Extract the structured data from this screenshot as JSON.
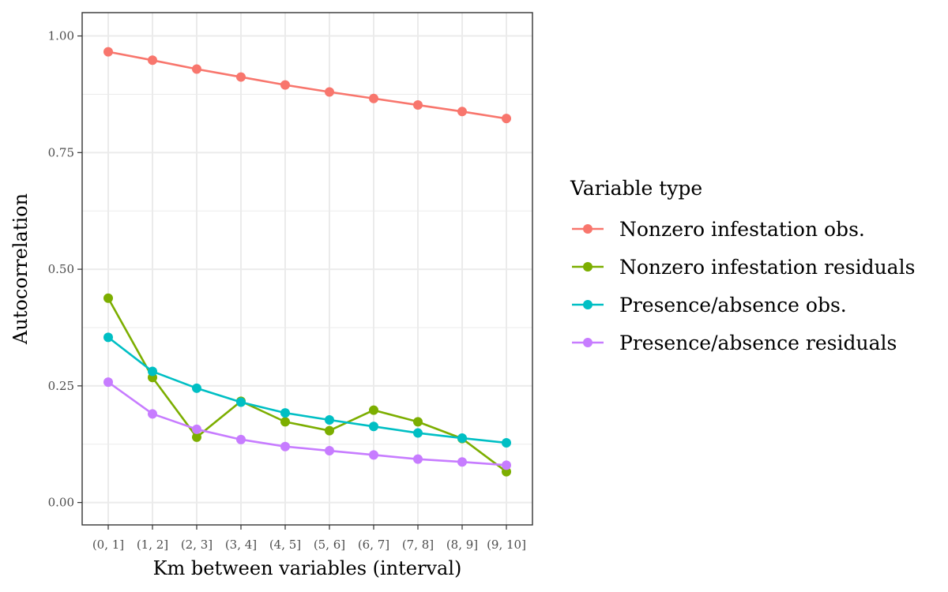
{
  "chart_data": {
    "type": "line",
    "title": "",
    "xlabel": "Km between variables (interval)",
    "ylabel": "Autocorrelation",
    "categories": [
      "(0, 1]",
      "(1, 2]",
      "(2, 3]",
      "(3, 4]",
      "(4, 5]",
      "(5, 6]",
      "(6, 7]",
      "(7, 8]",
      "(8, 9]",
      "(9, 10]"
    ],
    "ylim": [
      -0.048,
      1.05
    ],
    "yticks": [
      0.0,
      0.25,
      0.5,
      0.75,
      1.0
    ],
    "ytick_labels": [
      "0.00",
      "0.25",
      "0.50",
      "0.75",
      "1.00"
    ],
    "grid": true,
    "legend_title": "Variable type",
    "legend_position": "right",
    "series": [
      {
        "name": "Nonzero infestation obs.",
        "color": "#F8766D",
        "values": [
          0.966,
          0.948,
          0.929,
          0.912,
          0.895,
          0.88,
          0.866,
          0.852,
          0.838,
          0.823
        ]
      },
      {
        "name": "Nonzero infestation residuals",
        "color": "#7CAE00",
        "values": [
          0.438,
          0.268,
          0.14,
          0.217,
          0.173,
          0.154,
          0.198,
          0.173,
          0.137,
          0.066
        ]
      },
      {
        "name": "Presence/absence obs.",
        "color": "#00BFC4",
        "values": [
          0.354,
          0.281,
          0.245,
          0.215,
          0.192,
          0.177,
          0.163,
          0.149,
          0.138,
          0.128
        ]
      },
      {
        "name": "Presence/absence residuals",
        "color": "#C77CFF",
        "values": [
          0.258,
          0.19,
          0.157,
          0.135,
          0.12,
          0.111,
          0.102,
          0.093,
          0.087,
          0.08
        ]
      }
    ]
  }
}
